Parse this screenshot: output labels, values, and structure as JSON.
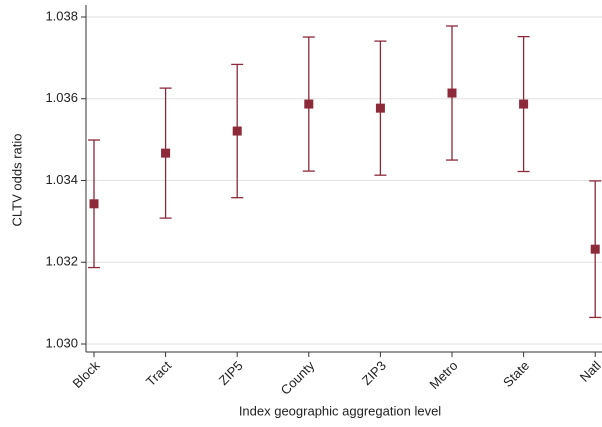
{
  "chart_data": {
    "type": "errorbar",
    "x_label": "Index geographic aggregation level",
    "y_label": "CLTV odds ratio",
    "categories": [
      "Block",
      "Tract",
      "ZIP5",
      "County",
      "ZIP3",
      "Metro",
      "State",
      "Natl"
    ],
    "values": [
      1.03343,
      1.03467,
      1.03521,
      1.03587,
      1.03577,
      1.03614,
      1.03587,
      1.03232
    ],
    "errors": [
      0.00156,
      0.00159,
      0.00163,
      0.00164,
      0.00164,
      0.00164,
      0.00165,
      0.00167
    ],
    "color": "#8c2a3a",
    "ylim": [
      1.03,
      1.038
    ],
    "yticks": [
      {
        "value": 1.03,
        "label": "1.030"
      },
      {
        "value": 1.032,
        "label": "1.032"
      },
      {
        "value": 1.034,
        "label": "1.034"
      },
      {
        "value": 1.036,
        "label": "1.036"
      },
      {
        "value": 1.038,
        "label": "1.038"
      }
    ],
    "grid": true
  }
}
